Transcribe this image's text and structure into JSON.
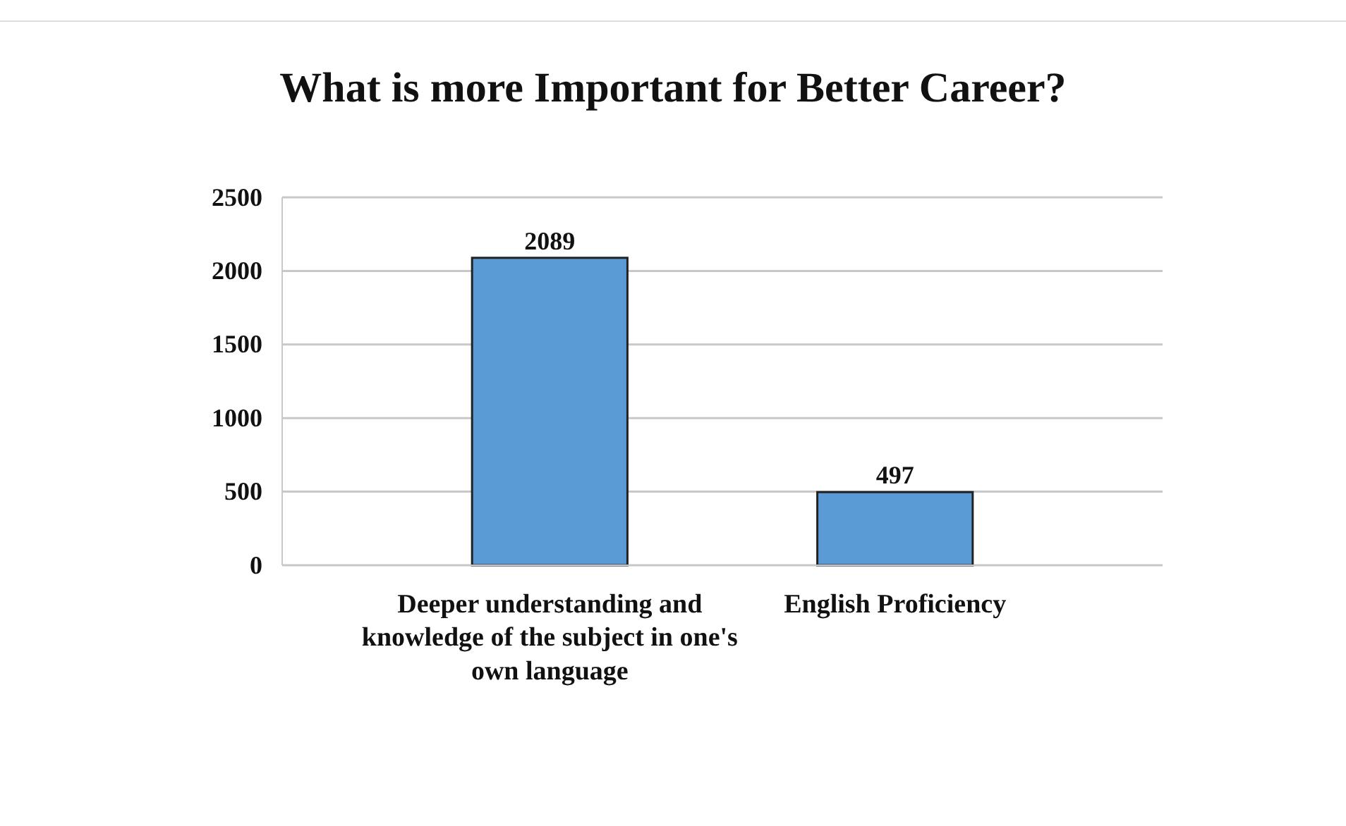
{
  "chart_data": {
    "type": "bar",
    "title": "What is more Important for Better Career?",
    "categories": [
      "Deeper understanding and knowledge of the subject in one's own language",
      "English Proficiency"
    ],
    "values": [
      2089,
      497
    ],
    "color": "#5b9bd5",
    "ylim": [
      0,
      2500
    ],
    "yticks": [
      0,
      500,
      1000,
      1500,
      2000,
      2500
    ],
    "grid": "y",
    "data_labels": true
  }
}
